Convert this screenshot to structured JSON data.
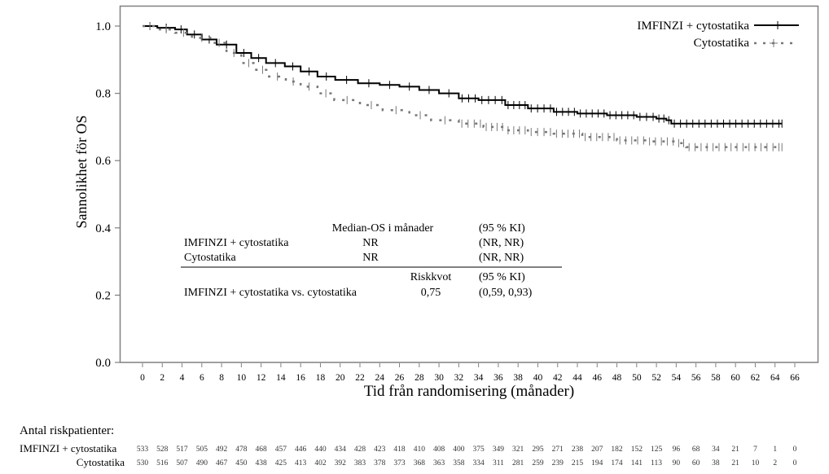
{
  "chart_data": {
    "type": "line",
    "subtype": "kaplan-meier",
    "title": "",
    "xlabel": "Tid från randomisering (månader)",
    "ylabel": "Sannolikhet för OS",
    "xlim": [
      0,
      66
    ],
    "ylim": [
      0.0,
      1.0
    ],
    "xticks": [
      0,
      2,
      4,
      6,
      8,
      10,
      12,
      14,
      16,
      18,
      20,
      22,
      24,
      26,
      28,
      30,
      32,
      34,
      36,
      38,
      40,
      42,
      44,
      46,
      48,
      50,
      52,
      54,
      56,
      58,
      60,
      62,
      64,
      66
    ],
    "yticks": [
      "0.0",
      "0.2",
      "0.4",
      "0.6",
      "0.8",
      "1.0"
    ],
    "grid": false,
    "legend_position": "top-right",
    "series": [
      {
        "name": "IMFINZI + cytostatika",
        "color": "#000000",
        "style": "solid",
        "x": [
          0,
          1.5,
          3.3,
          4.5,
          6,
          7.5,
          9.5,
          11,
          12.5,
          14.4,
          16,
          17.7,
          19.5,
          21.8,
          24,
          26,
          28,
          30,
          32,
          34,
          36.7,
          39,
          41.6,
          44,
          47,
          50,
          52,
          53,
          53.5,
          64.7
        ],
        "y": [
          1.0,
          0.995,
          0.99,
          0.975,
          0.96,
          0.945,
          0.92,
          0.905,
          0.89,
          0.88,
          0.865,
          0.85,
          0.84,
          0.83,
          0.825,
          0.82,
          0.81,
          0.8,
          0.785,
          0.78,
          0.765,
          0.755,
          0.745,
          0.74,
          0.735,
          0.73,
          0.725,
          0.72,
          0.71,
          0.71
        ]
      },
      {
        "name": "Cytostatika",
        "color": "#777777",
        "style": "dashed",
        "x": [
          0,
          1.5,
          3.3,
          5,
          7,
          8.5,
          10,
          11.5,
          12.8,
          14.5,
          16,
          17.7,
          19.4,
          22,
          24.3,
          27,
          29.2,
          32,
          34.5,
          36.7,
          39,
          41.6,
          44.5,
          48,
          51,
          54,
          55,
          64.7
        ],
        "y": [
          1.0,
          0.99,
          0.98,
          0.965,
          0.95,
          0.92,
          0.89,
          0.87,
          0.85,
          0.835,
          0.82,
          0.8,
          0.78,
          0.765,
          0.75,
          0.735,
          0.72,
          0.71,
          0.7,
          0.69,
          0.685,
          0.68,
          0.67,
          0.66,
          0.657,
          0.652,
          0.64,
          0.64
        ]
      }
    ],
    "legend": [
      {
        "label": "IMFINZI + cytostatika",
        "color": "#000000",
        "style": "solid"
      },
      {
        "label": "Cytostatika",
        "color": "#777777",
        "style": "dashed"
      }
    ],
    "annotation_table": {
      "header1": [
        "Median-OS i månader",
        "(95 % KI)"
      ],
      "rows1": [
        {
          "label": "IMFINZI + cytostatika",
          "median": "NR",
          "ci": "(NR, NR)"
        },
        {
          "label": "Cytostatika",
          "median": "NR",
          "ci": "(NR, NR)"
        }
      ],
      "header2": [
        "Riskkvot",
        "(95 % KI)"
      ],
      "rows2": [
        {
          "label": "IMFINZI + cytostatika vs. cytostatika",
          "hr": "0,75",
          "ci": "(0,59, 0,93)"
        }
      ]
    }
  },
  "risk_table": {
    "title": "Antal riskpatienter:",
    "rows": [
      {
        "label": "IMFINZI + cytostatika",
        "values": [
          "533",
          "528",
          "517",
          "505",
          "492",
          "478",
          "468",
          "457",
          "446",
          "440",
          "434",
          "428",
          "423",
          "418",
          "410",
          "408",
          "400",
          "375",
          "349",
          "321",
          "295",
          "271",
          "238",
          "207",
          "182",
          "152",
          "125",
          "96",
          "68",
          "34",
          "21",
          "7",
          "1",
          "0"
        ]
      },
      {
        "label": "Cytostatika",
        "values": [
          "530",
          "516",
          "507",
          "490",
          "467",
          "450",
          "438",
          "425",
          "413",
          "402",
          "392",
          "383",
          "378",
          "373",
          "368",
          "363",
          "358",
          "334",
          "311",
          "281",
          "259",
          "239",
          "215",
          "194",
          "174",
          "141",
          "113",
          "90",
          "60",
          "38",
          "21",
          "10",
          "2",
          "0"
        ]
      }
    ]
  }
}
